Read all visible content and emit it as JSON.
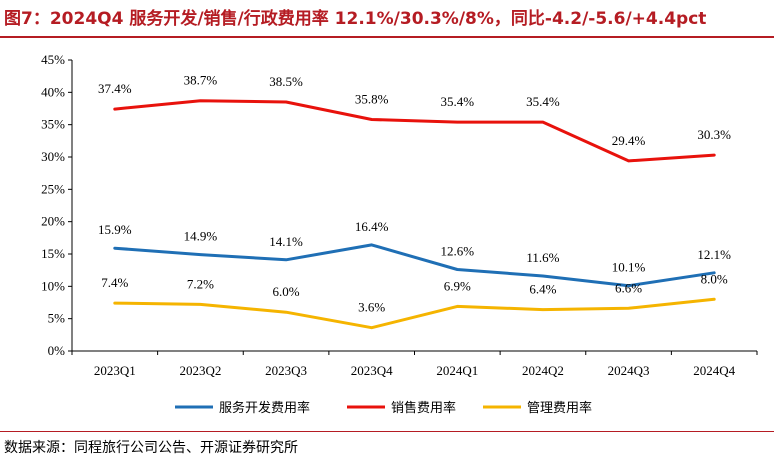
{
  "header": {
    "title": "图7：2024Q4 服务开发/销售/行政费用率 12.1%/30.3%/8%，同比-4.2/-5.6/+4.4pct"
  },
  "footer": {
    "source": "数据来源：同程旅行公司公告、开源证券研究所"
  },
  "chart_data": {
    "type": "line",
    "title": "2024Q4 服务开发/销售/行政费用率 12.1%/30.3%/8%，同比-4.2/-5.6/+4.4pct",
    "categories": [
      "2023Q1",
      "2023Q2",
      "2023Q3",
      "2023Q4",
      "2024Q1",
      "2024Q2",
      "2024Q3",
      "2024Q4"
    ],
    "ylim": [
      0,
      45
    ],
    "yticks": [
      0,
      5,
      10,
      15,
      20,
      25,
      30,
      35,
      40,
      45
    ],
    "ytick_format": "%",
    "legend_position": "bottom",
    "series": [
      {
        "name": "服务开发费用率",
        "color": "#1f6fb5",
        "values": [
          15.9,
          14.9,
          14.1,
          16.4,
          12.6,
          11.6,
          10.1,
          12.1
        ],
        "labels": [
          "15.9%",
          "14.9%",
          "14.1%",
          "16.4%",
          "12.6%",
          "11.6%",
          "10.1%",
          "12.1%"
        ]
      },
      {
        "name": "销售费用率",
        "color": "#e8120c",
        "values": [
          37.4,
          38.7,
          38.5,
          35.8,
          35.4,
          35.4,
          29.4,
          30.3
        ],
        "labels": [
          "37.4%",
          "38.7%",
          "38.5%",
          "35.8%",
          "35.4%",
          "35.4%",
          "29.4%",
          "30.3%"
        ]
      },
      {
        "name": "管理费用率",
        "color": "#f5b400",
        "values": [
          7.4,
          7.2,
          6.0,
          3.6,
          6.9,
          6.4,
          6.6,
          8.0
        ],
        "labels": [
          "7.4%",
          "7.2%",
          "6.0%",
          "3.6%",
          "6.9%",
          "6.4%",
          "6.6%",
          "8.0%"
        ]
      }
    ]
  }
}
